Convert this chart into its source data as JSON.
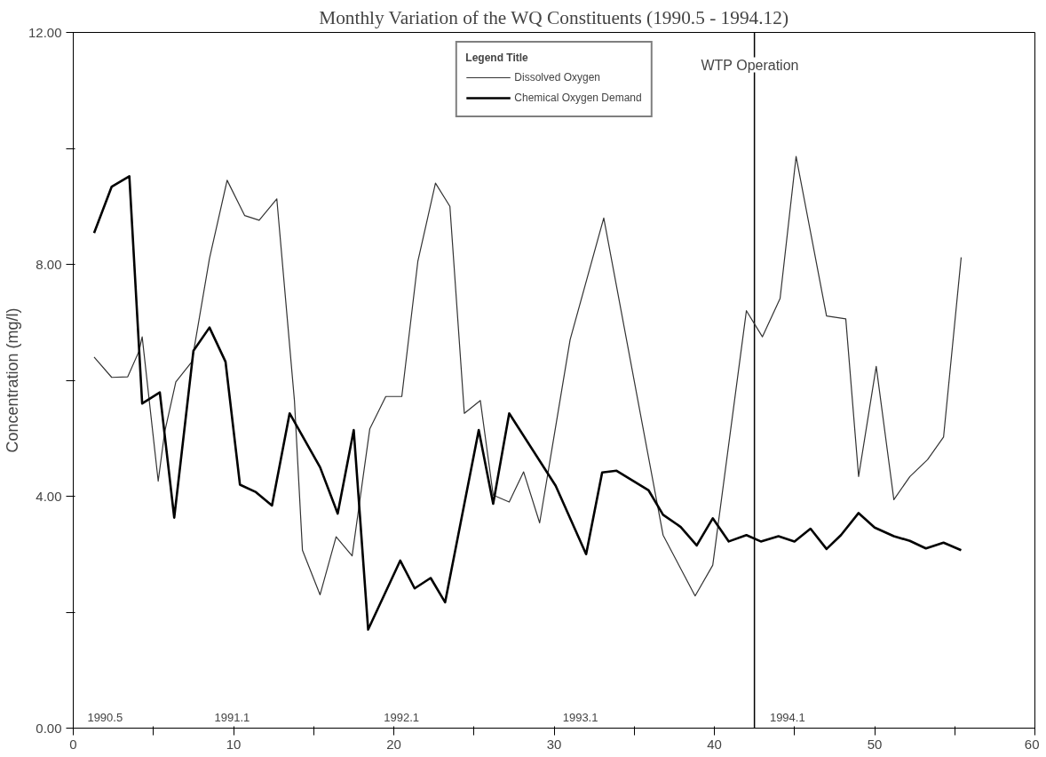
{
  "chart_data": {
    "type": "line",
    "title": "Monthly Variation of the WQ Constituents (1990.5 - 1994.12)",
    "ylabel": "Concentration (mg/l)",
    "legend_title": "Legend Title",
    "legend": "top",
    "grid": false,
    "line_style": "solid",
    "xlim": [
      0,
      60
    ],
    "xticks": [
      0,
      {
        "value": 5,
        "label": null
      },
      10,
      {
        "value": 15,
        "label": null
      },
      20,
      {
        "value": 25,
        "label": null
      },
      30,
      {
        "value": 35,
        "label": null
      },
      40,
      {
        "value": 45,
        "label": null
      },
      50,
      {
        "value": 55,
        "label": null
      },
      60
    ],
    "ylim": [
      0,
      12
    ],
    "yticks": [
      {
        "value": 0,
        "label": "0.00"
      },
      {
        "value": 2,
        "label": null
      },
      {
        "value": 4,
        "label": "4.00"
      },
      {
        "value": 6,
        "label": null
      },
      {
        "value": 8,
        "label": "8.00"
      },
      {
        "value": 10,
        "label": null
      },
      {
        "value": 12,
        "label": "12.00"
      }
    ],
    "series": [
      {
        "name": "Dissolved Oxygen",
        "color": "#333333",
        "x": [
          1.3,
          2.4,
          3.4,
          4.1,
          4.3,
          5.3,
          5.7,
          6.4,
          7.4,
          8.5,
          9.6,
          10.7,
          11.6,
          12.7,
          13.8,
          14.3,
          15.4,
          16.4,
          17.4,
          18.5,
          19.5,
          20.5,
          21.5,
          22.6,
          23.5,
          24.4,
          25.4,
          26.2,
          27.2,
          28.1,
          29.1,
          31.0,
          33.1,
          36.8,
          38.8,
          39.9,
          42.0,
          43.0,
          44.1,
          45.1,
          47.0,
          48.2,
          49.0,
          50.1,
          51.2,
          52.2,
          53.3,
          54.3,
          55.4
        ],
        "values": [
          6.4,
          6.05,
          6.06,
          6.5,
          6.75,
          4.26,
          5.1,
          5.97,
          6.32,
          8.1,
          9.45,
          8.84,
          8.76,
          9.13,
          5.65,
          3.07,
          2.3,
          3.3,
          2.97,
          5.16,
          5.72,
          5.72,
          8.05,
          9.4,
          9.0,
          5.43,
          5.65,
          4.02,
          3.9,
          4.42,
          3.54,
          6.7,
          8.8,
          3.33,
          2.28,
          2.81,
          7.2,
          6.75,
          7.41,
          9.86,
          7.11,
          7.06,
          4.34,
          6.24,
          3.94,
          4.34,
          4.63,
          5.02,
          8.12
        ]
      },
      {
        "name": "Chemical Oxygen Demand",
        "color": "#000000",
        "x": [
          1.3,
          2.4,
          3.5,
          4.3,
          5.4,
          6.3,
          7.5,
          8.5,
          9.5,
          10.4,
          11.4,
          12.4,
          13.5,
          15.4,
          16.5,
          17.5,
          18.4,
          20.4,
          21.3,
          22.3,
          23.2,
          25.3,
          26.2,
          27.2,
          30.1,
          32.0,
          33.0,
          33.9,
          35.9,
          36.8,
          37.9,
          38.9,
          39.9,
          40.9,
          42.0,
          42.9,
          44.0,
          45.0,
          46.0,
          47.0,
          47.9,
          49.0,
          50.0,
          51.2,
          52.2,
          53.2,
          54.3,
          55.4
        ],
        "values": [
          8.54,
          9.34,
          9.52,
          5.6,
          5.79,
          3.63,
          6.51,
          6.91,
          6.32,
          4.2,
          4.07,
          3.84,
          5.43,
          4.5,
          3.7,
          5.14,
          1.7,
          2.89,
          2.41,
          2.59,
          2.17,
          5.14,
          3.87,
          5.43,
          4.18,
          3.0,
          4.41,
          4.44,
          4.1,
          3.68,
          3.47,
          3.15,
          3.62,
          3.22,
          3.33,
          3.22,
          3.31,
          3.22,
          3.44,
          3.09,
          3.33,
          3.71,
          3.46,
          3.31,
          3.23,
          3.1,
          3.2,
          3.07
        ]
      }
    ],
    "ref_lines": [
      {
        "axis": "x",
        "value": 42.5,
        "label": "WTP Operation",
        "color": "#000000"
      }
    ],
    "annotations": [
      "1990.5",
      "1991.1",
      "1992.1",
      "1993.1",
      "1994.1"
    ]
  }
}
